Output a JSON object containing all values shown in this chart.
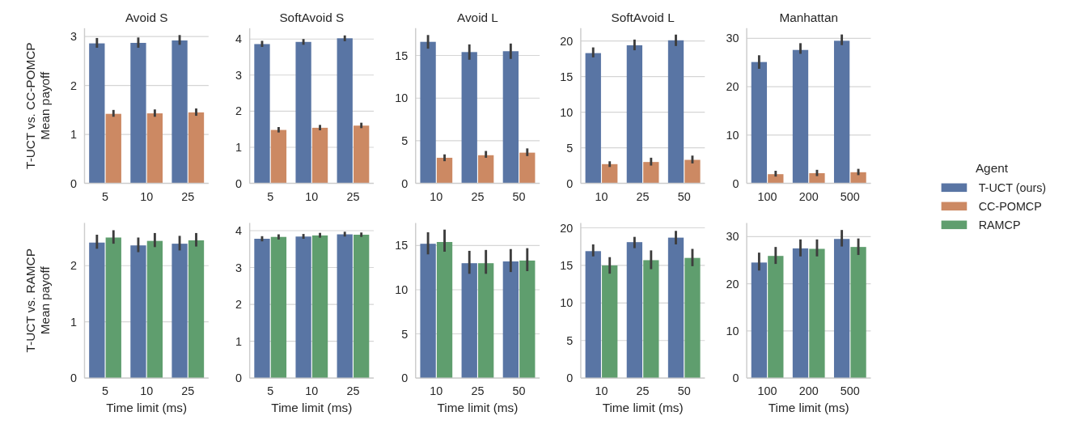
{
  "chart_data": [
    {
      "type": "bar",
      "title": "Avoid S",
      "ylabel": "T-UCT vs. CC-POMCP\nMean payoff",
      "categories": [
        "5",
        "10",
        "25"
      ],
      "ylim": [
        0,
        3.17
      ],
      "yticks": [
        0,
        1,
        2,
        3
      ],
      "grid": "y",
      "legend": "right",
      "tick_labels": true,
      "series": [
        {
          "name": "T-UCT (ours)",
          "color": "#5975a4",
          "values": [
            2.86,
            2.87,
            2.92
          ],
          "errors": [
            [
              2.77,
              2.97
            ],
            [
              2.77,
              2.98
            ],
            [
              2.83,
              3.03
            ]
          ]
        },
        {
          "name": "CC-POMCP",
          "color": "#cc8963",
          "values": [
            1.42,
            1.43,
            1.45
          ],
          "errors": [
            [
              1.36,
              1.5
            ],
            [
              1.36,
              1.51
            ],
            [
              1.38,
              1.53
            ]
          ]
        }
      ]
    },
    {
      "type": "bar",
      "title": "SoftAvoid S",
      "categories": [
        "5",
        "10",
        "25"
      ],
      "ylim": [
        0,
        4.3
      ],
      "yticks": [
        0,
        1,
        2,
        3,
        4
      ],
      "grid": "y",
      "legend": "right",
      "series": [
        {
          "name": "T-UCT (ours)",
          "color": "#5975a4",
          "values": [
            3.86,
            3.92,
            4.02
          ],
          "errors": [
            [
              3.78,
              3.95
            ],
            [
              3.84,
              4.0
            ],
            [
              3.94,
              4.1
            ]
          ]
        },
        {
          "name": "CC-POMCP",
          "color": "#cc8963",
          "values": [
            1.48,
            1.54,
            1.6
          ],
          "errors": [
            [
              1.41,
              1.56
            ],
            [
              1.47,
              1.62
            ],
            [
              1.53,
              1.68
            ]
          ]
        }
      ]
    },
    {
      "type": "bar",
      "title": "Avoid L",
      "categories": [
        "10",
        "25",
        "50"
      ],
      "ylim": [
        0,
        18.2
      ],
      "yticks": [
        0,
        5,
        10,
        15
      ],
      "grid": "y",
      "legend": "right",
      "series": [
        {
          "name": "T-UCT (ours)",
          "color": "#5975a4",
          "values": [
            16.6,
            15.4,
            15.5
          ],
          "errors": [
            [
              15.8,
              17.4
            ],
            [
              14.5,
              16.3
            ],
            [
              14.6,
              16.4
            ]
          ]
        },
        {
          "name": "CC-POMCP",
          "color": "#cc8963",
          "values": [
            3.0,
            3.3,
            3.6
          ],
          "errors": [
            [
              2.6,
              3.4
            ],
            [
              3.0,
              3.8
            ],
            [
              3.2,
              4.1
            ]
          ]
        }
      ]
    },
    {
      "type": "bar",
      "title": "SoftAvoid L",
      "categories": [
        "10",
        "25",
        "50"
      ],
      "ylim": [
        0,
        21.8
      ],
      "yticks": [
        0,
        5,
        10,
        15,
        20
      ],
      "grid": "y",
      "legend": "right",
      "series": [
        {
          "name": "T-UCT (ours)",
          "color": "#5975a4",
          "values": [
            18.3,
            19.4,
            20.1
          ],
          "errors": [
            [
              17.7,
              19.1
            ],
            [
              18.7,
              20.2
            ],
            [
              19.3,
              20.9
            ]
          ]
        },
        {
          "name": "CC-POMCP",
          "color": "#cc8963",
          "values": [
            2.7,
            3.0,
            3.3
          ],
          "errors": [
            [
              2.3,
              3.1
            ],
            [
              2.5,
              3.6
            ],
            [
              2.8,
              3.9
            ]
          ]
        }
      ]
    },
    {
      "type": "bar",
      "title": "Manhattan",
      "categories": [
        "100",
        "200",
        "500"
      ],
      "ylim": [
        0,
        32.1
      ],
      "yticks": [
        0,
        10,
        20,
        30
      ],
      "grid": "y",
      "legend": "right",
      "legend_title": "Agent",
      "series": [
        {
          "name": "T-UCT (ours)",
          "color": "#5975a4",
          "values": [
            25.1,
            27.6,
            29.5
          ],
          "errors": [
            [
              23.7,
              26.5
            ],
            [
              26.8,
              29.0
            ],
            [
              28.6,
              30.8
            ]
          ]
        },
        {
          "name": "CC-POMCP",
          "color": "#cc8963",
          "values": [
            1.9,
            2.1,
            2.3
          ],
          "errors": [
            [
              1.4,
              2.6
            ],
            [
              1.5,
              2.8
            ],
            [
              1.7,
              3.0
            ]
          ]
        }
      ]
    },
    {
      "type": "bar",
      "ylabel": "T-UCT vs. RAMCP\nMean payoff",
      "xlabel": "Time limit (ms)",
      "categories": [
        "5",
        "10",
        "25"
      ],
      "ylim": [
        0,
        2.76
      ],
      "yticks": [
        0,
        1,
        2
      ],
      "grid": "y",
      "legend": "right",
      "series": [
        {
          "name": "T-UCT (ours)",
          "color": "#5975a4",
          "values": [
            2.41,
            2.36,
            2.39
          ],
          "errors": [
            [
              2.3,
              2.55
            ],
            [
              2.24,
              2.5
            ],
            [
              2.27,
              2.53
            ]
          ]
        },
        {
          "name": "RAMCP",
          "color": "#5f9e6e",
          "values": [
            2.5,
            2.44,
            2.45
          ],
          "errors": [
            [
              2.39,
              2.63
            ],
            [
              2.33,
              2.58
            ],
            [
              2.34,
              2.58
            ]
          ]
        }
      ]
    },
    {
      "type": "bar",
      "xlabel": "Time limit (ms)",
      "categories": [
        "5",
        "10",
        "25"
      ],
      "ylim": [
        0,
        4.21
      ],
      "yticks": [
        0,
        1,
        2,
        3,
        4
      ],
      "grid": "y",
      "legend": "right",
      "series": [
        {
          "name": "T-UCT (ours)",
          "color": "#5975a4",
          "values": [
            3.78,
            3.84,
            3.9
          ],
          "errors": [
            [
              3.71,
              3.85
            ],
            [
              3.78,
              3.91
            ],
            [
              3.84,
              3.97
            ]
          ]
        },
        {
          "name": "RAMCP",
          "color": "#5f9e6e",
          "values": [
            3.83,
            3.87,
            3.89
          ],
          "errors": [
            [
              3.76,
              3.9
            ],
            [
              3.81,
              3.94
            ],
            [
              3.83,
              3.95
            ]
          ]
        }
      ]
    },
    {
      "type": "bar",
      "xlabel": "Time limit (ms)",
      "categories": [
        "10",
        "25",
        "50"
      ],
      "ylim": [
        0,
        17.56
      ],
      "yticks": [
        0,
        5,
        10,
        15
      ],
      "grid": "y",
      "legend": "right",
      "series": [
        {
          "name": "T-UCT (ours)",
          "color": "#5975a4",
          "values": [
            15.2,
            13.0,
            13.2
          ],
          "errors": [
            [
              14.0,
              16.5
            ],
            [
              11.8,
              14.4
            ],
            [
              12.0,
              14.6
            ]
          ]
        },
        {
          "name": "RAMCP",
          "color": "#5f9e6e",
          "values": [
            15.4,
            13.0,
            13.3
          ],
          "errors": [
            [
              14.3,
              16.8
            ],
            [
              11.8,
              14.5
            ],
            [
              12.1,
              14.7
            ]
          ]
        }
      ]
    },
    {
      "type": "bar",
      "xlabel": "Time limit (ms)",
      "categories": [
        "10",
        "25",
        "50"
      ],
      "ylim": [
        0,
        20.66
      ],
      "yticks": [
        0,
        5,
        10,
        15,
        20
      ],
      "grid": "y",
      "legend": "right",
      "series": [
        {
          "name": "T-UCT (ours)",
          "color": "#5975a4",
          "values": [
            16.9,
            18.1,
            18.7
          ],
          "errors": [
            [
              16.2,
              17.8
            ],
            [
              17.3,
              18.8
            ],
            [
              17.8,
              19.6
            ]
          ]
        },
        {
          "name": "RAMCP",
          "color": "#5f9e6e",
          "values": [
            15.0,
            15.7,
            16.0
          ],
          "errors": [
            [
              13.9,
              16.1
            ],
            [
              14.5,
              17.0
            ],
            [
              14.9,
              17.2
            ]
          ]
        }
      ]
    },
    {
      "type": "bar",
      "xlabel": "Time limit (ms)",
      "categories": [
        "100",
        "200",
        "500"
      ],
      "ylim": [
        0,
        32.9
      ],
      "yticks": [
        0,
        10,
        20,
        30
      ],
      "grid": "y",
      "legend": "right",
      "series": [
        {
          "name": "T-UCT (ours)",
          "color": "#5975a4",
          "values": [
            24.5,
            27.5,
            29.5
          ],
          "errors": [
            [
              22.8,
              26.6
            ],
            [
              25.8,
              29.4
            ],
            [
              27.9,
              31.4
            ]
          ]
        },
        {
          "name": "RAMCP",
          "color": "#5f9e6e",
          "values": [
            25.9,
            27.4,
            27.8
          ],
          "errors": [
            [
              24.2,
              27.8
            ],
            [
              25.8,
              29.4
            ],
            [
              26.1,
              29.6
            ]
          ]
        }
      ]
    }
  ]
}
